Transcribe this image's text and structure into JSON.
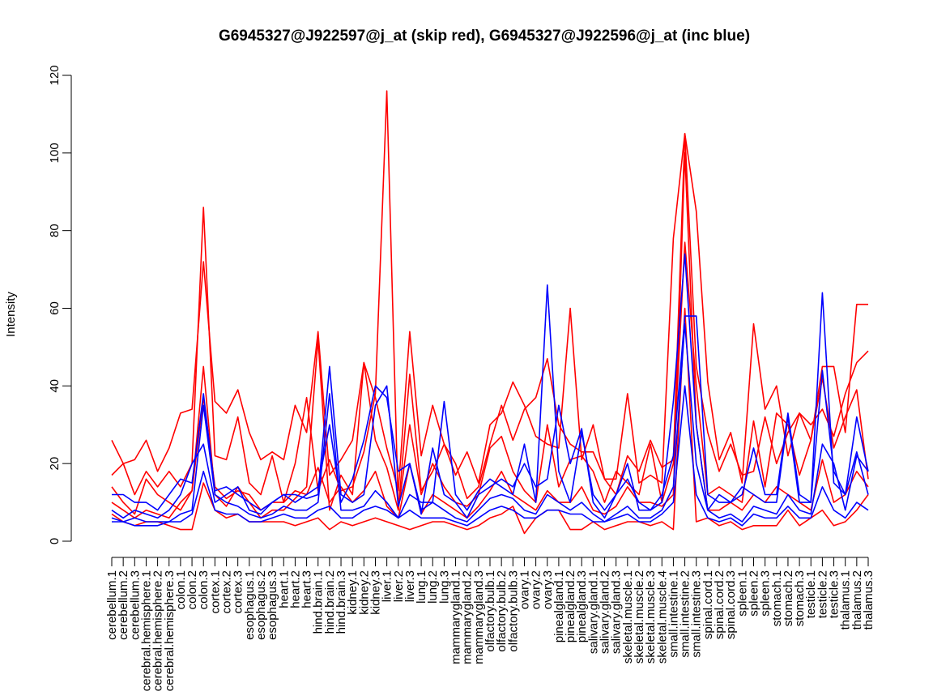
{
  "chart_data": {
    "type": "line",
    "title": "G6945327@J922597@j_at (skip red), G6945327@J922596@j_at (inc blue)",
    "xlabel": "",
    "ylabel": "Intensity",
    "ylim": [
      0,
      120
    ],
    "yticks": [
      0,
      20,
      40,
      60,
      80,
      100,
      120
    ],
    "legend": "none",
    "grid": false,
    "colors": {
      "skip": "#ff0000",
      "inc": "#0000ff"
    },
    "categories": [
      "cerebellum.1",
      "cerebellum.2",
      "cerebellum.3",
      "cerebral.hemisphere.1",
      "cerebral.hemisphere.2",
      "cerebral.hemisphere.3",
      "colon.1",
      "colon.2",
      "colon.3",
      "cortex.1",
      "cortex.2",
      "cortex.3",
      "esophagus.1",
      "esophagus.2",
      "esophagus.3",
      "heart.1",
      "heart.2",
      "heart.3",
      "hind.brain.1",
      "hind.brain.2",
      "hind.brain.3",
      "kidney.1",
      "kidney.2",
      "kidney.3",
      "liver.1",
      "liver.2",
      "liver.3",
      "lung.1",
      "lung.2",
      "lung.3",
      "mammarygland.1",
      "mammarygland.2",
      "mammarygland.3",
      "olfactory.bulb.1",
      "olfactory.bulb.2",
      "olfactory.bulb.3",
      "ovary.1",
      "ovary.2",
      "ovary.3",
      "pinealgland.1",
      "pinealgland.2",
      "pinealgland.3",
      "salivary.gland.1",
      "salivary.gland.2",
      "salivary.gland.3",
      "skeletal.muscle.1",
      "skeletal.muscle.2",
      "skeletal.muscle.3",
      "skeletal.muscle.4",
      "small.intestine.1",
      "small.intestine.2",
      "small.intestine.3",
      "spinal.cord.1",
      "spinal.cord.2",
      "spinal.cord.3",
      "spleen.1",
      "spleen.2",
      "spleen.3",
      "stomach.1",
      "stomach.2",
      "stomach.3",
      "testicle.1",
      "testicle.2",
      "testicle.3",
      "thalamus.1",
      "thalamus.2",
      "thalamus.3"
    ],
    "series": [
      {
        "group": "skip",
        "values": [
          26,
          20,
          21,
          26,
          18,
          24,
          33,
          34,
          72,
          36,
          33,
          39,
          28,
          21,
          23,
          21,
          35,
          28,
          54,
          17,
          21,
          26,
          46,
          37,
          24,
          13,
          54,
          22,
          35,
          25,
          17,
          23,
          15,
          30,
          33,
          41,
          35,
          27,
          25,
          24,
          60,
          21,
          30,
          16,
          12,
          22,
          18,
          26,
          19,
          21,
          105,
          85,
          41,
          21,
          28,
          15,
          56,
          34,
          40,
          22,
          33,
          26,
          45,
          45,
          28,
          61,
          61
        ]
      },
      {
        "group": "skip",
        "values": [
          17,
          20,
          12,
          18,
          14,
          18,
          14,
          20,
          86,
          22,
          21,
          32,
          15,
          12,
          22,
          10,
          20,
          37,
          13,
          21,
          13,
          14,
          23,
          38,
          116,
          8,
          43,
          13,
          18,
          25,
          20,
          11,
          14,
          25,
          35,
          26,
          34,
          37,
          47,
          30,
          25,
          23,
          23,
          16,
          16,
          38,
          15,
          17,
          15,
          78,
          105,
          45,
          28,
          18,
          25,
          17,
          18,
          32,
          20,
          28,
          33,
          30,
          34,
          27,
          38,
          46,
          49
        ]
      },
      {
        "group": "skip",
        "values": [
          14,
          10,
          7,
          16,
          12,
          10,
          8,
          13,
          45,
          12,
          9,
          14,
          10,
          6,
          8,
          8,
          11,
          14,
          52,
          8,
          17,
          12,
          46,
          26,
          19,
          8,
          30,
          12,
          20,
          14,
          10,
          9,
          12,
          24,
          27,
          18,
          13,
          10,
          30,
          14,
          21,
          22,
          18,
          10,
          18,
          15,
          12,
          25,
          10,
          20,
          77,
          40,
          12,
          14,
          12,
          10,
          31,
          14,
          33,
          30,
          17,
          26,
          42,
          24,
          32,
          39,
          16
        ]
      },
      {
        "group": "skip",
        "values": [
          10,
          8,
          6,
          8,
          7,
          6,
          10,
          13,
          37,
          14,
          11,
          13,
          12,
          8,
          10,
          10,
          13,
          12,
          19,
          10,
          14,
          10,
          13,
          18,
          9,
          6,
          20,
          7,
          12,
          10,
          8,
          6,
          9,
          13,
          18,
          12,
          10,
          8,
          13,
          10,
          10,
          14,
          8,
          7,
          9,
          14,
          10,
          10,
          9,
          12,
          100,
          30,
          8,
          8,
          10,
          8,
          12,
          10,
          14,
          12,
          10,
          8,
          21,
          10,
          12,
          18,
          14
        ]
      },
      {
        "group": "skip",
        "values": [
          7,
          5,
          4,
          5,
          5,
          4,
          3,
          3,
          15,
          8,
          6,
          7,
          5,
          5,
          5,
          5,
          4,
          5,
          6,
          3,
          5,
          4,
          5,
          6,
          5,
          4,
          3,
          4,
          5,
          5,
          4,
          3,
          4,
          6,
          7,
          9,
          2,
          6,
          8,
          8,
          3,
          3,
          5,
          3,
          4,
          5,
          5,
          4,
          5,
          3,
          60,
          5,
          6,
          4,
          5,
          3,
          4,
          4,
          4,
          8,
          4,
          6,
          8,
          4,
          5,
          8,
          12
        ]
      },
      {
        "group": "inc",
        "values": [
          12,
          12,
          10,
          10,
          8,
          12,
          16,
          15,
          38,
          13,
          14,
          12,
          10,
          8,
          10,
          12,
          12,
          11,
          12,
          45,
          12,
          10,
          12,
          35,
          40,
          9,
          20,
          8,
          10,
          36,
          12,
          8,
          13,
          16,
          14,
          12,
          25,
          10,
          66,
          18,
          10,
          28,
          12,
          8,
          12,
          20,
          8,
          8,
          10,
          36,
          74,
          30,
          8,
          12,
          10,
          12,
          24,
          12,
          12,
          33,
          12,
          10,
          64,
          15,
          12,
          32,
          18
        ]
      },
      {
        "group": "inc",
        "values": [
          8,
          6,
          8,
          7,
          6,
          8,
          12,
          20,
          25,
          10,
          12,
          14,
          8,
          7,
          10,
          12,
          10,
          12,
          14,
          30,
          10,
          16,
          26,
          40,
          37,
          18,
          20,
          7,
          24,
          12,
          10,
          6,
          12,
          14,
          16,
          14,
          20,
          14,
          16,
          35,
          20,
          29,
          10,
          6,
          12,
          16,
          10,
          8,
          12,
          22,
          58,
          58,
          12,
          10,
          10,
          14,
          12,
          10,
          10,
          32,
          10,
          10,
          44,
          18,
          12,
          23,
          12
        ]
      },
      {
        "group": "inc",
        "values": [
          6,
          5,
          6,
          5,
          5,
          5,
          7,
          8,
          35,
          12,
          10,
          9,
          7,
          6,
          7,
          9,
          8,
          8,
          10,
          38,
          8,
          8,
          9,
          13,
          10,
          6,
          12,
          10,
          10,
          8,
          6,
          5,
          8,
          11,
          12,
          11,
          8,
          7,
          12,
          10,
          8,
          10,
          7,
          5,
          7,
          9,
          6,
          6,
          8,
          14,
          56,
          20,
          8,
          6,
          7,
          5,
          9,
          8,
          7,
          12,
          8,
          7,
          25,
          20,
          8,
          22,
          18
        ]
      },
      {
        "group": "inc",
        "values": [
          5,
          5,
          4,
          4,
          4,
          5,
          5,
          7,
          18,
          8,
          7,
          7,
          5,
          5,
          6,
          7,
          6,
          6,
          8,
          9,
          6,
          6,
          8,
          9,
          8,
          6,
          8,
          6,
          6,
          6,
          5,
          4,
          6,
          8,
          9,
          8,
          6,
          6,
          8,
          8,
          7,
          7,
          5,
          5,
          6,
          7,
          5,
          5,
          7,
          10,
          40,
          12,
          6,
          5,
          6,
          4,
          7,
          6,
          6,
          9,
          6,
          6,
          14,
          8,
          6,
          10,
          8
        ]
      }
    ]
  }
}
